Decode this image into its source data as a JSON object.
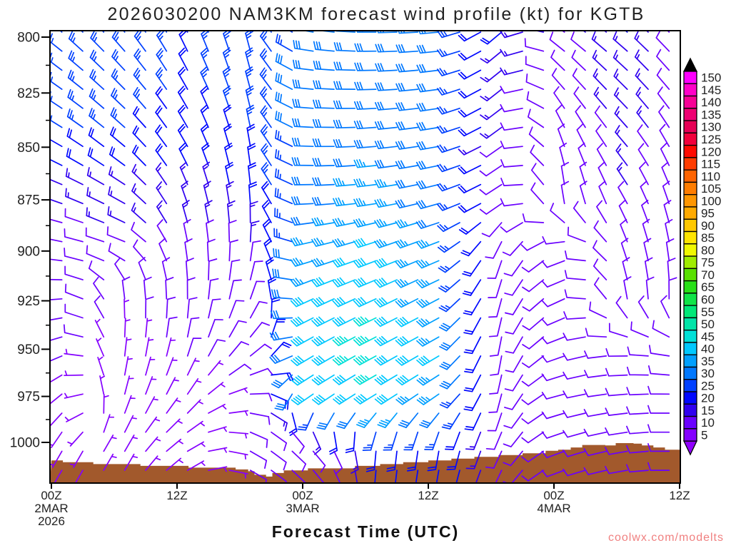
{
  "title": "2026030200 NAM3KM forecast wind profile (kt) for KGTB",
  "watermark": "coolwx.com/modelts",
  "watermark_color": "#f08080",
  "chart_data": {
    "type": "wind-barb-cross-section",
    "title": "2026030200 NAM3KM forecast wind profile (kt) for KGTB",
    "xlabel": "Forecast Time (UTC)",
    "y_axis": {
      "kind": "pressure-log",
      "tick_labels": [
        800,
        825,
        850,
        875,
        900,
        925,
        950,
        975,
        1000
      ],
      "range_top_hpa": 797,
      "range_bottom_hpa": 1022
    },
    "x_axis": {
      "kind": "time-utc-hours",
      "hour_range": [
        0,
        60
      ],
      "ticks": [
        {
          "hour": 0,
          "label": "00Z",
          "date": "2MAR",
          "year": "2026"
        },
        {
          "hour": 12,
          "label": "12Z"
        },
        {
          "hour": 24,
          "label": "00Z",
          "date": "3MAR"
        },
        {
          "hour": 36,
          "label": "12Z"
        },
        {
          "hour": 48,
          "label": "00Z",
          "date": "4MAR"
        },
        {
          "hour": 60,
          "label": "12Z"
        }
      ]
    },
    "barbs": {
      "interval_hours": 2,
      "first_hour": 1,
      "columns": 30,
      "rows": 24
    },
    "wind_grid": {
      "hours": [
        1,
        7,
        13,
        19,
        25,
        31,
        37,
        43,
        49,
        55,
        59
      ],
      "pressures_hpa": [
        800,
        825,
        850,
        875,
        900,
        925,
        950,
        975,
        1000
      ],
      "direction_deg_from": [
        [
          310,
          320,
          335,
          345,
          280,
          270,
          265,
          230,
          305,
          310,
          315
        ],
        [
          305,
          315,
          330,
          345,
          275,
          268,
          262,
          232,
          320,
          315,
          320
        ],
        [
          300,
          310,
          330,
          350,
          272,
          265,
          260,
          235,
          340,
          320,
          330
        ],
        [
          290,
          300,
          340,
          355,
          268,
          262,
          255,
          238,
          355,
          330,
          340
        ],
        [
          280,
          290,
          350,
          5,
          255,
          250,
          248,
          200,
          250,
          340,
          350
        ],
        [
          265,
          355,
          0,
          20,
          245,
          245,
          242,
          195,
          245,
          350,
          0
        ],
        [
          250,
          5,
          15,
          45,
          240,
          242,
          240,
          190,
          250,
          270,
          280
        ],
        [
          230,
          15,
          35,
          90,
          235,
          238,
          235,
          195,
          255,
          265,
          270
        ],
        [
          210,
          30,
          60,
          120,
          140,
          185,
          190,
          205,
          250,
          260,
          270
        ]
      ],
      "speed_kt": [
        [
          25,
          25,
          22,
          25,
          28,
          30,
          30,
          18,
          10,
          18,
          12
        ],
        [
          25,
          25,
          22,
          25,
          30,
          32,
          28,
          14,
          8,
          16,
          11
        ],
        [
          22,
          22,
          20,
          22,
          30,
          32,
          28,
          12,
          8,
          14,
          10
        ],
        [
          14,
          15,
          15,
          18,
          30,
          35,
          30,
          12,
          8,
          12,
          9
        ],
        [
          10,
          10,
          10,
          12,
          35,
          40,
          35,
          12,
          10,
          10,
          8
        ],
        [
          8,
          8,
          8,
          10,
          38,
          42,
          35,
          10,
          12,
          10,
          8
        ],
        [
          8,
          6,
          8,
          8,
          40,
          45,
          38,
          12,
          12,
          10,
          10
        ],
        [
          6,
          6,
          6,
          8,
          38,
          42,
          35,
          12,
          12,
          12,
          10
        ],
        [
          6,
          5,
          6,
          8,
          8,
          20,
          22,
          10,
          10,
          12,
          10
        ]
      ]
    },
    "colorbar": {
      "values": [
        5,
        10,
        15,
        20,
        25,
        30,
        35,
        40,
        45,
        50,
        55,
        60,
        65,
        70,
        75,
        80,
        85,
        90,
        95,
        100,
        105,
        110,
        115,
        120,
        125,
        130,
        135,
        140,
        145,
        150
      ],
      "colors": [
        "#8400ff",
        "#6a00ff",
        "#3000f0",
        "#0008ff",
        "#0040ff",
        "#0078ff",
        "#00a0ff",
        "#00c8ff",
        "#00e0d8",
        "#00e4a8",
        "#00e878",
        "#10e448",
        "#28e018",
        "#58e000",
        "#a0ec00",
        "#f0f800",
        "#ffe400",
        "#ffc800",
        "#ffaa00",
        "#ff9600",
        "#ff7d00",
        "#ff6400",
        "#ff3c00",
        "#ff0a00",
        "#f2003c",
        "#e60055",
        "#ee0072",
        "#f70096",
        "#ff00c8",
        "#ff00ff"
      ],
      "over_color": "#000000",
      "under_color": "#9000ff"
    },
    "terrain_profile": {
      "color": "#a2592c",
      "points_hour_pressure": [
        [
          0,
          1010
        ],
        [
          1.1,
          1011
        ],
        [
          4,
          1012
        ],
        [
          8.5,
          1013
        ],
        [
          13.1,
          1014
        ],
        [
          17.6,
          1015
        ],
        [
          18.8,
          1016
        ],
        [
          19.4,
          1018
        ],
        [
          20.5,
          1019
        ],
        [
          21.1,
          1017
        ],
        [
          22.2,
          1015.5
        ],
        [
          24.5,
          1014.4
        ],
        [
          29,
          1013
        ],
        [
          31.4,
          1012
        ],
        [
          33.6,
          1011
        ],
        [
          36,
          1010
        ],
        [
          38.2,
          1009
        ],
        [
          40.4,
          1008
        ],
        [
          42.7,
          1007
        ],
        [
          45,
          1006
        ],
        [
          47.2,
          1004.6
        ],
        [
          48.4,
          1004
        ],
        [
          49.6,
          1002.8
        ],
        [
          50.7,
          1001.4
        ],
        [
          52.9,
          1001.7
        ],
        [
          53.9,
          1000.4
        ],
        [
          55.6,
          1000.7
        ],
        [
          56.4,
          1001.7
        ],
        [
          57.5,
          1002.8
        ],
        [
          58.6,
          1004
        ],
        [
          60,
          1004.4
        ]
      ]
    }
  }
}
